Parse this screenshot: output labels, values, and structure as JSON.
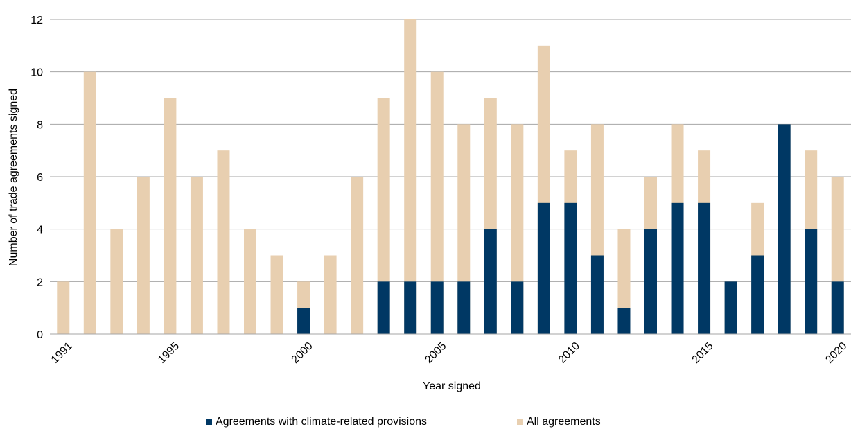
{
  "chart_data": {
    "type": "bar",
    "stacked": false,
    "overlapping": true,
    "x": [
      1991,
      1992,
      1993,
      1994,
      1995,
      1996,
      1997,
      1998,
      1999,
      2000,
      2001,
      2002,
      2003,
      2004,
      2005,
      2006,
      2007,
      2008,
      2009,
      2010,
      2011,
      2012,
      2013,
      2014,
      2015,
      2016,
      2017,
      2018,
      2019,
      2020
    ],
    "x_tick_labels": [
      "1991",
      "1995",
      "2000",
      "2005",
      "2010",
      "2015",
      "2020"
    ],
    "y_ticks": [
      0,
      2,
      4,
      6,
      8,
      10,
      12
    ],
    "ylim": [
      0,
      12
    ],
    "xlabel": "Year signed",
    "ylabel": "Number of trade agreements signed",
    "grid": "horizontal",
    "legend_position": "bottom",
    "series": [
      {
        "name": "All agreements",
        "color": "#e8cfb0",
        "values": [
          2,
          10,
          4,
          6,
          9,
          6,
          7,
          4,
          3,
          2,
          3,
          6,
          9,
          12,
          10,
          8,
          9,
          8,
          11,
          7,
          8,
          4,
          6,
          8,
          7,
          2,
          5,
          8,
          7,
          6
        ]
      },
      {
        "name": "Agreements with climate-related provisions",
        "color": "#003864",
        "values": [
          0,
          0,
          0,
          0,
          0,
          0,
          0,
          0,
          0,
          1,
          0,
          0,
          2,
          2,
          2,
          2,
          4,
          2,
          5,
          5,
          3,
          1,
          4,
          5,
          5,
          2,
          3,
          8,
          4,
          2
        ]
      }
    ]
  }
}
